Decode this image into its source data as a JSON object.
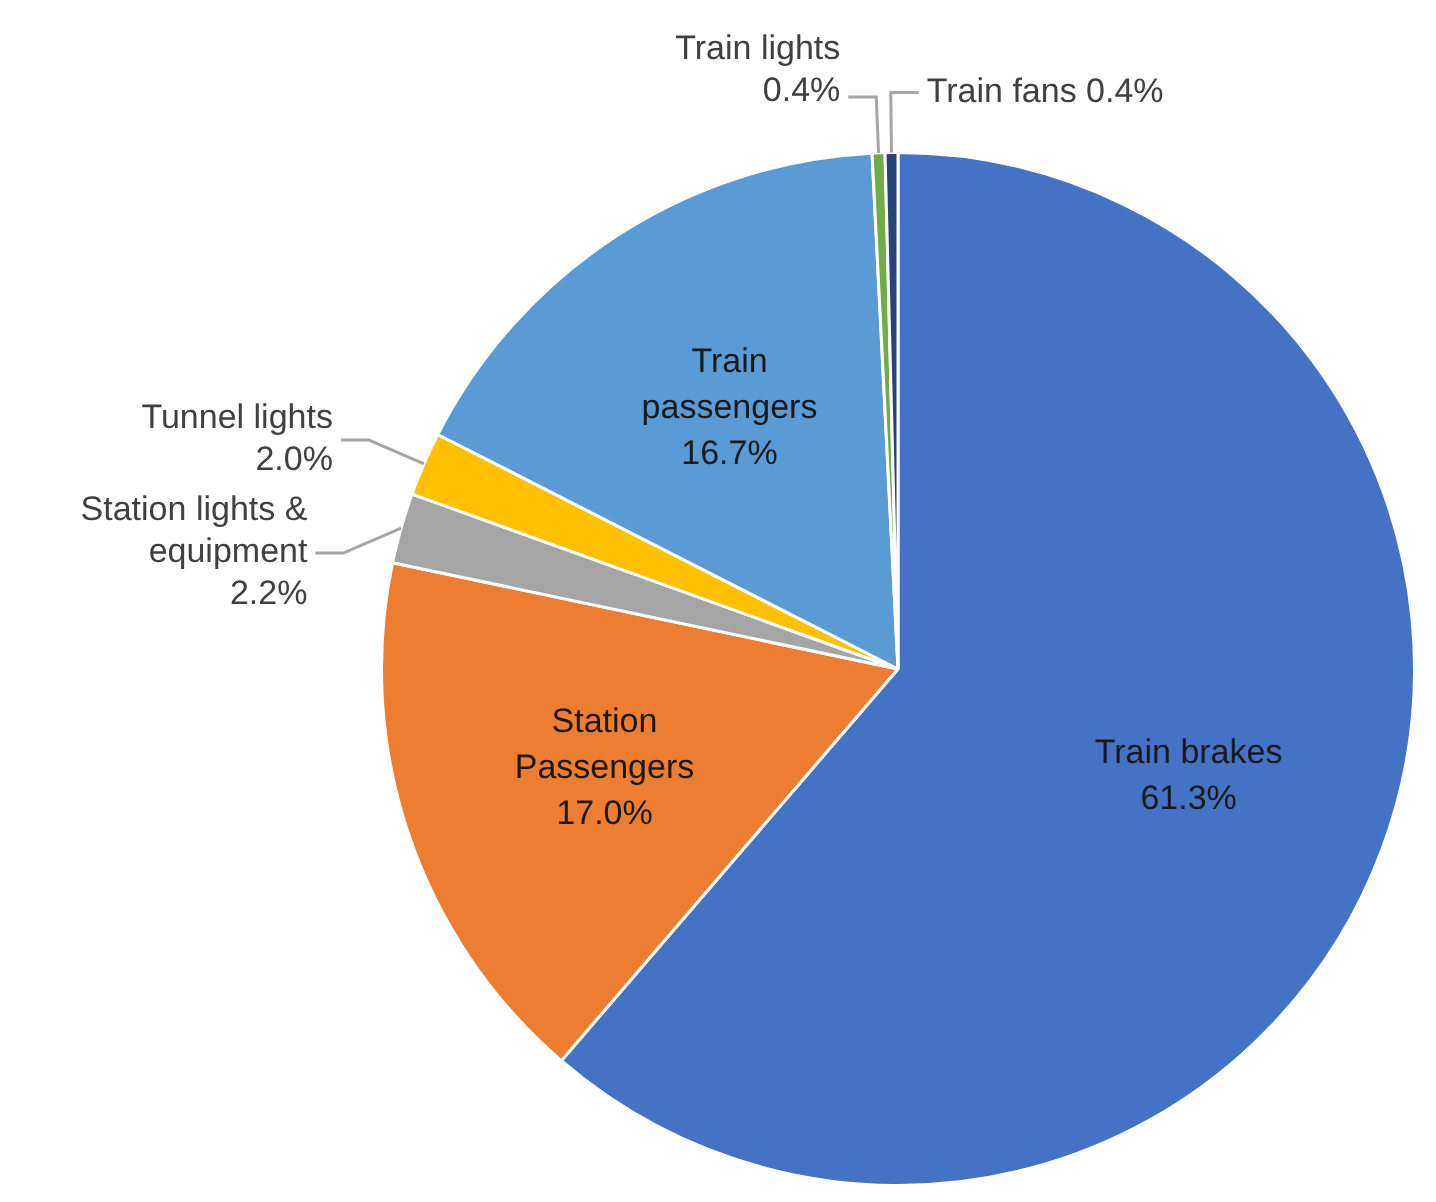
{
  "chart_data": {
    "type": "pie",
    "categories": [
      "Train brakes",
      "Station Passengers",
      "Station lights & equipment",
      "Tunnel lights",
      "Train passengers",
      "Train lights",
      "Train fans"
    ],
    "values": [
      61.3,
      17.0,
      2.2,
      2.0,
      16.7,
      0.4,
      0.4
    ],
    "value_labels": [
      "61.3%",
      "17.0%",
      "2.2%",
      "2.0%",
      "16.7%",
      "0.4%",
      "0.4%"
    ],
    "colors": [
      "#4472c4",
      "#ed7d31",
      "#a5a5a5",
      "#ffc000",
      "#5b9bd5",
      "#70ad47",
      "#264478"
    ],
    "legend": false
  }
}
